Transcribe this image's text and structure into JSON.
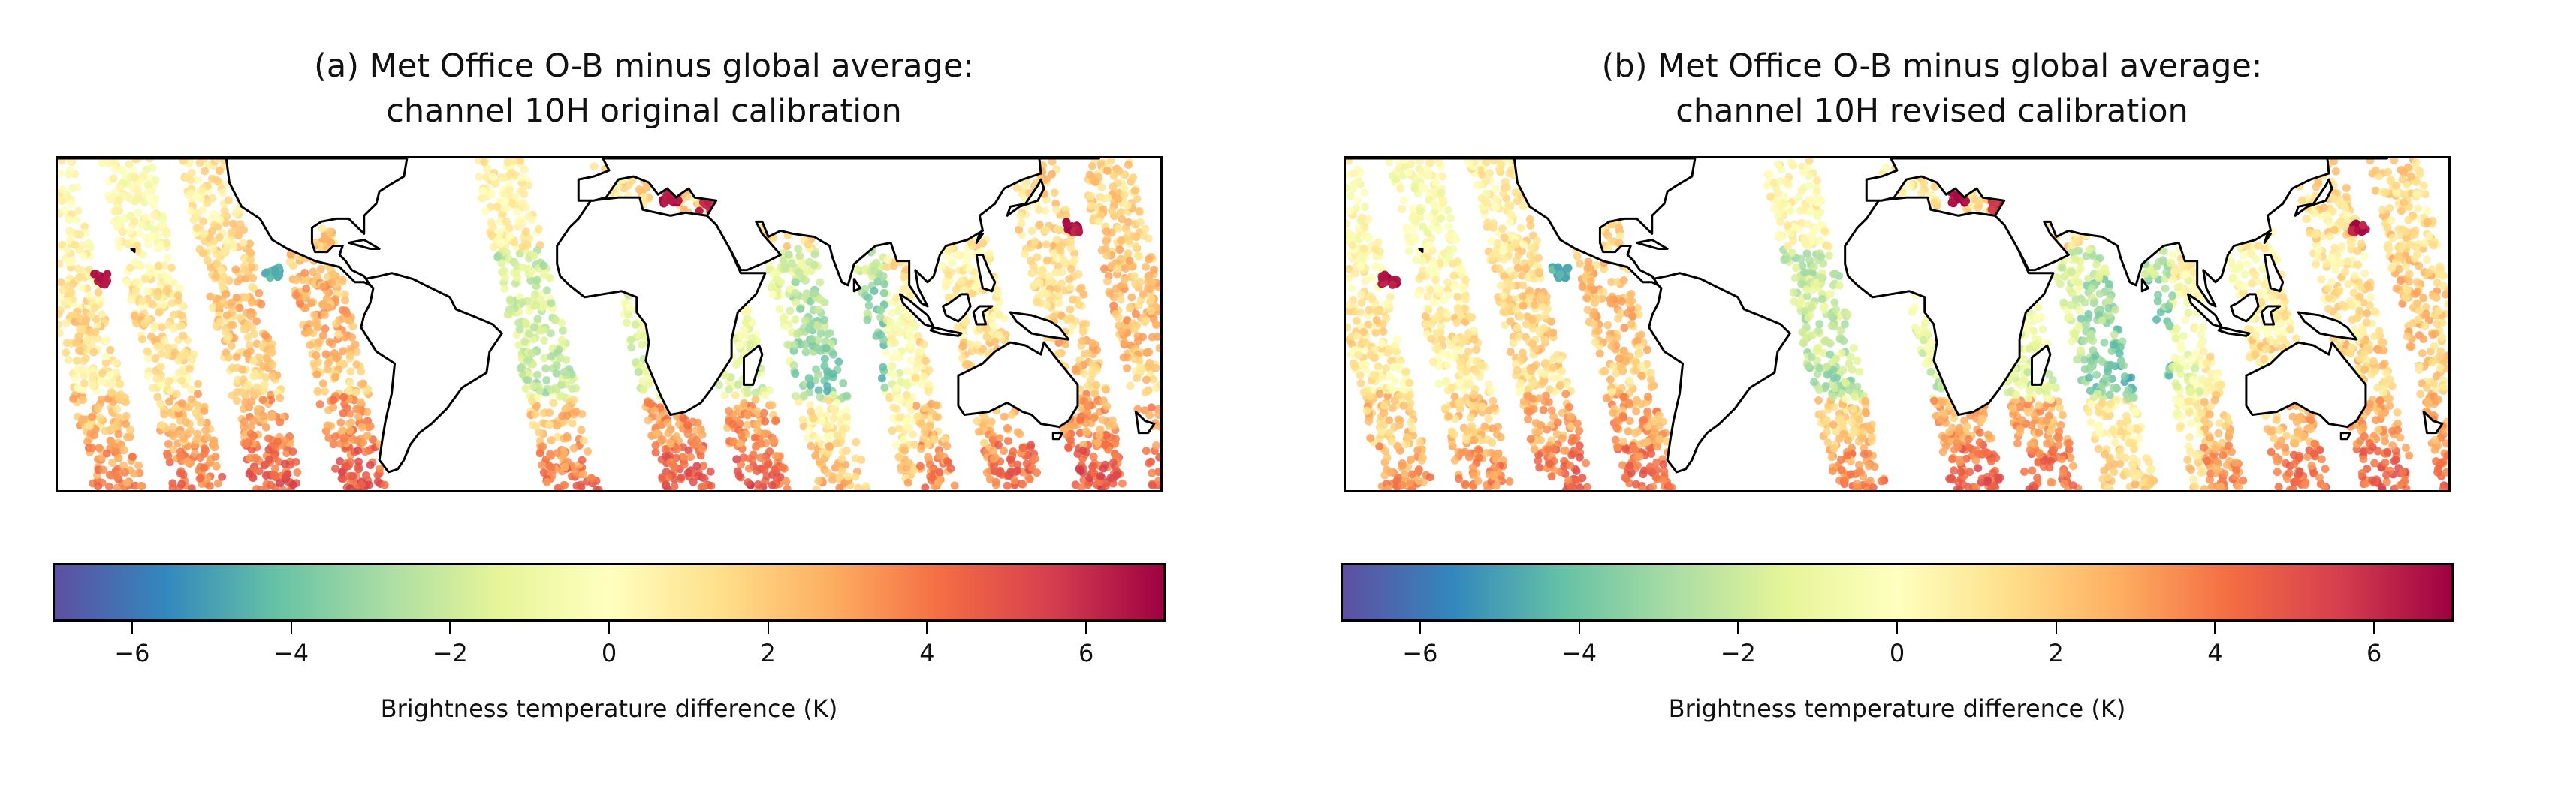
{
  "panels": [
    {
      "title_line1": "(a) Met Office O-B minus global average:",
      "title_line2": "channel 10H original calibration",
      "colorbar_label": "Brightness temperature difference (K)",
      "calibration": "original"
    },
    {
      "title_line1": "(b) Met Office O-B minus global average:",
      "title_line2": "channel 10H revised calibration",
      "colorbar_label": "Brightness temperature difference (K)",
      "calibration": "revised"
    }
  ],
  "colorbar": {
    "cmap": "Spectral_r",
    "vmin": -7,
    "vmax": 7,
    "ticks": [
      -6,
      -4,
      -2,
      0,
      2,
      4,
      6
    ],
    "tick_labels": [
      "−6",
      "−4",
      "−2",
      "0",
      "2",
      "4",
      "6"
    ],
    "colors": [
      "#5e4fa2",
      "#3288bd",
      "#66c2a5",
      "#abdda4",
      "#e6f598",
      "#ffffbf",
      "#fee08b",
      "#fdae61",
      "#f46d43",
      "#d53e4f",
      "#9e0142"
    ]
  },
  "map": {
    "lon_range": [
      -180,
      180
    ],
    "lat_range": [
      -60,
      50
    ],
    "swaths_lon_at_equator": [
      -173,
      -147,
      -121,
      -93,
      -25,
      13,
      38,
      63,
      92,
      120,
      148,
      173
    ],
    "swath_width_deg": 17,
    "coastline_color": "#000000",
    "hotspots": [
      {
        "lon": 20,
        "lat": 37,
        "value": 6.5
      },
      {
        "lon": 32,
        "lat": 34,
        "value": 6.0
      },
      {
        "lon": 151,
        "lat": 27,
        "value": 6.5
      },
      {
        "lon": -166,
        "lat": 10,
        "value": 6.5
      },
      {
        "lon": -110,
        "lat": 12,
        "value": -4.5
      }
    ]
  }
}
